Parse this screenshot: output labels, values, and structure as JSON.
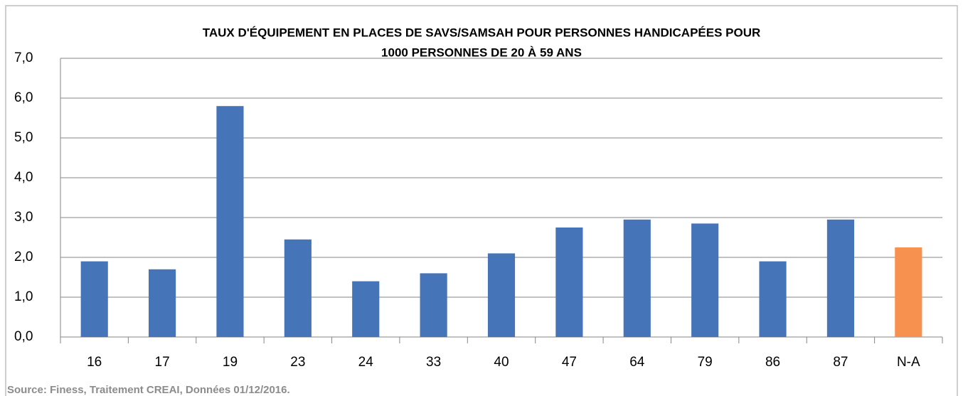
{
  "chart_data": {
    "type": "bar",
    "title": [
      "TAUX D'ÉQUIPEMENT EN PLACES DE SAVS/SAMSAH POUR PERSONNES HANDICAPÉES POUR",
      "1000 PERSONNES DE 20 À 59 ANS"
    ],
    "categories": [
      "16",
      "17",
      "19",
      "23",
      "24",
      "33",
      "40",
      "47",
      "64",
      "79",
      "86",
      "87",
      "N-A"
    ],
    "values": [
      1.9,
      1.7,
      5.8,
      2.45,
      1.4,
      1.6,
      2.1,
      2.75,
      2.95,
      2.85,
      1.9,
      2.95,
      2.25
    ],
    "colors": [
      "#4674b8",
      "#4674b8",
      "#4674b8",
      "#4674b8",
      "#4674b8",
      "#4674b8",
      "#4674b8",
      "#4674b8",
      "#4674b8",
      "#4674b8",
      "#4674b8",
      "#4674b8",
      "#f79150"
    ],
    "ylim": [
      0,
      7
    ],
    "yticks": [
      {
        "value": 0,
        "label": "0,0"
      },
      {
        "value": 1,
        "label": "1,0"
      },
      {
        "value": 2,
        "label": "2,0"
      },
      {
        "value": 3,
        "label": "3,0"
      },
      {
        "value": 4,
        "label": "4,0"
      },
      {
        "value": 5,
        "label": "5,0"
      },
      {
        "value": 6,
        "label": "6,0"
      },
      {
        "value": 7,
        "label": "7,0"
      }
    ],
    "grid": true,
    "source": "Source: Finess, Traitement CREAI, Données 01/12/2016."
  }
}
